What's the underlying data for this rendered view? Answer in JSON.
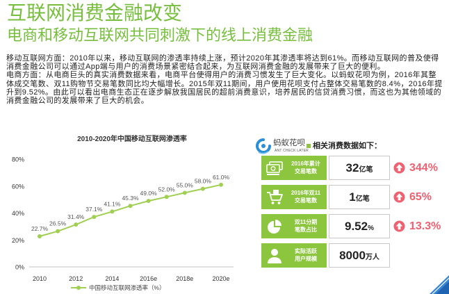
{
  "header": {
    "title": "互联网消费金融改变",
    "subtitle": "电商和移动互联网共同刺激下的线上消费金融"
  },
  "body": {
    "paragraphs": [
      "移动互联网方面：2010年以来，移动互联网的渗透率持续上涨，预计2020年其渗透率将达到61%。而移动互联网的普及使得消费金融公司可以通过App端与用户的消费场景紧密结合起来，为互联网消费金融的发展带来了巨大的便利。",
      "电商方面：从电商巨头的真实消费数据来看，电商平台使得用户的消费习惯发生了巨大变化。以蚂蚁花呗为例，2016年其整体成交笔数、双11购物节交易笔数同比均大幅增长。2015年双11期间，用户使用花呗支付占整体交易笔数的8.4%，2016年提升到9.52%。由此可以看出电商生态正在逐步解放我国居民的超前消费意识，培养居民的信贷消费习惯，而这也为其他领域的消费金融公司的发展带来了巨大的机会。"
    ]
  },
  "chart_data": {
    "type": "line",
    "title": "2010-2020年中国移动互联网渗透率",
    "x": [
      2010,
      2011,
      2012,
      2013,
      2014,
      2015,
      2016,
      2017,
      2018,
      2019,
      2020
    ],
    "x_ticks": [
      2010,
      2012,
      2014,
      2016,
      2018,
      2020
    ],
    "x_tick_labels": [
      "2010",
      "2012",
      "2014",
      "2016e",
      "2018e",
      "2020e"
    ],
    "y_ticks": [
      0,
      20,
      40,
      60,
      80
    ],
    "y_tick_labels": [
      "0%",
      "20%",
      "40%",
      "60%",
      "80%"
    ],
    "ylim": [
      0,
      80
    ],
    "grid": false,
    "legend": "bottom",
    "series": [
      {
        "name": "中国移动互联网渗透率（%）",
        "values": [
          22.7,
          26.5,
          31.4,
          37.1,
          41.1,
          45.3,
          49.0,
          52.0,
          55.0,
          58.0,
          61.0
        ],
        "labels": [
          "22.7%",
          "26.5%",
          "31.4%",
          "37.1%",
          "41.1%",
          "45.3%",
          "49.0%",
          "52.0%",
          "55.0%",
          "58.0%",
          "61.0%"
        ]
      }
    ]
  },
  "brand": {
    "logo_icon": "ant-check-later-logo-icon",
    "name": "蚂蚁花呗",
    "tagline": "ANT CHECK LATER"
  },
  "stats": {
    "heading": "相关消费数据如下：",
    "items": [
      {
        "icon": "money-bills-icon",
        "label_lines": [
          "2016年累计",
          "交易笔数"
        ],
        "value": "32",
        "unit": "亿笔",
        "growth": "344%",
        "growth_icon": "up-arrow-icon"
      },
      {
        "icon": "shopping-cart-icon",
        "label_lines": [
          "2016年双11",
          "交易笔数"
        ],
        "value": "1",
        "unit": "亿笔",
        "growth": "65%",
        "growth_icon": "up-arrow-icon"
      },
      {
        "icon": "pie-chart-icon",
        "label_lines": [
          "双11分期",
          "笔数占比"
        ],
        "value": "9.52",
        "unit": "%",
        "growth": "13.3%",
        "growth_icon": "up-arrow-icon"
      },
      {
        "icon": "user-icon",
        "label_lines": [
          "实际活跃",
          "用户规模"
        ],
        "value": "8000",
        "unit": "万人"
      }
    ]
  },
  "colors": {
    "title_green": "#78be3e",
    "card_green": "#8cc63f",
    "growth_red": "#ef6170",
    "chart_line": "#a0cf52",
    "logo_blue": "#2b8fd8",
    "corner_blue": "#3a86d4"
  }
}
